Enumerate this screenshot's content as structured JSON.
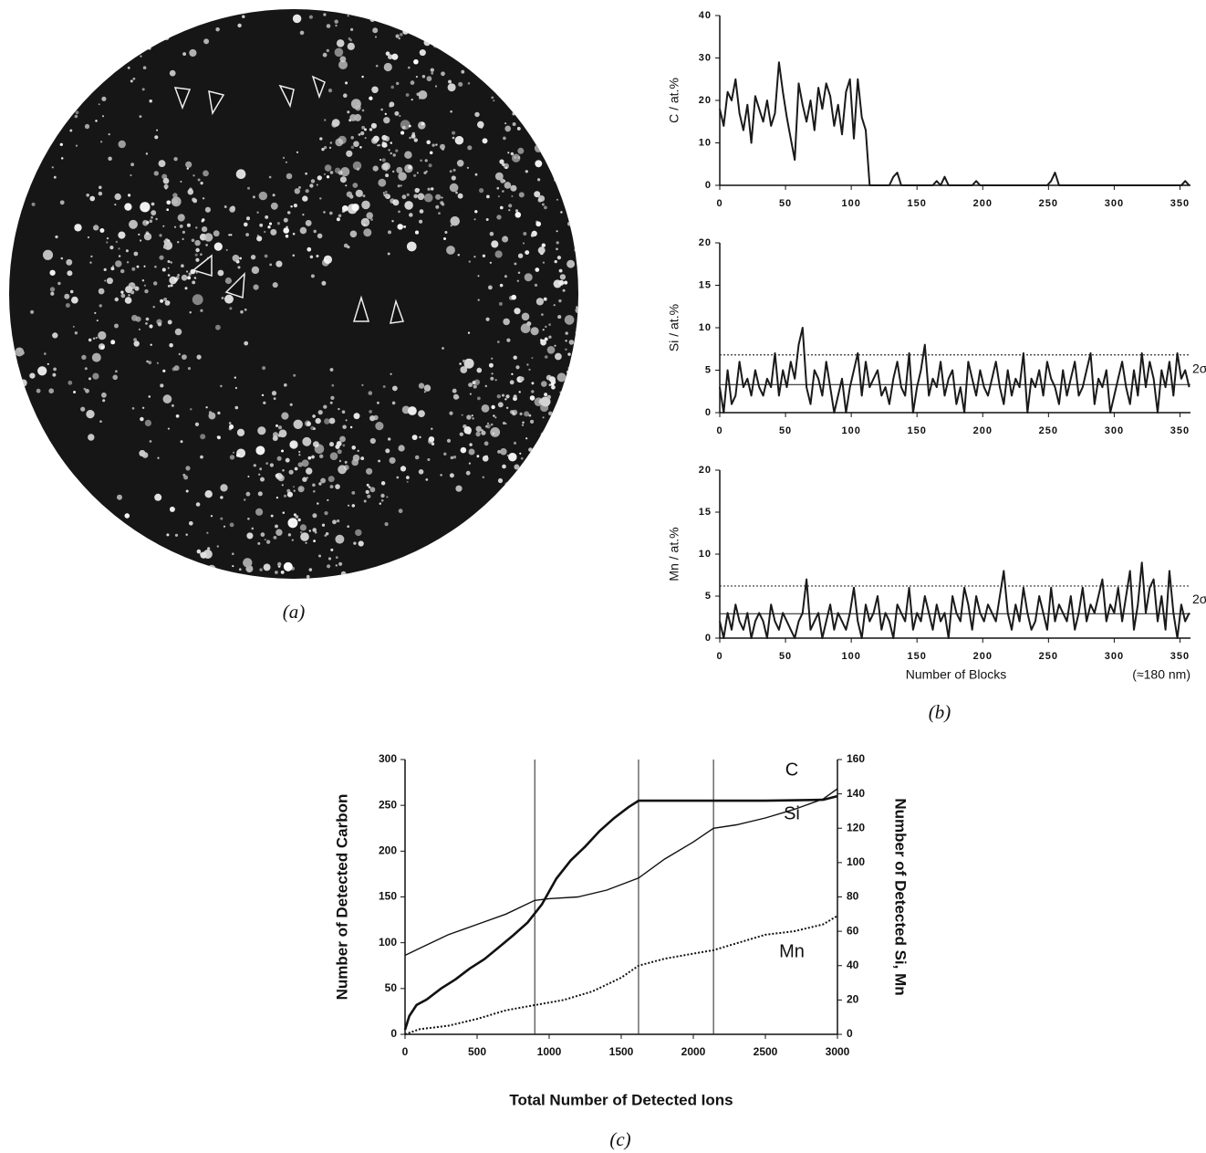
{
  "panels": [
    {
      "caption": "(a)"
    },
    {
      "caption": "(b)"
    },
    {
      "caption": "(c)"
    }
  ],
  "chart_data": [
    {
      "type": "line",
      "ylabel": "C / at.%",
      "xlim": [
        0,
        358
      ],
      "xticks": [
        0,
        50,
        100,
        150,
        200,
        250,
        300,
        350
      ],
      "ylim": [
        0,
        40
      ],
      "yticks": [
        0,
        10,
        20,
        30,
        40
      ],
      "color": "#1a1a1a",
      "x": [
        0,
        3,
        6,
        9,
        12,
        15,
        18,
        21,
        24,
        27,
        30,
        33,
        36,
        39,
        42,
        45,
        48,
        51,
        54,
        57,
        60,
        63,
        66,
        69,
        72,
        75,
        78,
        81,
        84,
        87,
        90,
        93,
        96,
        99,
        102,
        105,
        108,
        111,
        114,
        117,
        120,
        123,
        126,
        129,
        132,
        135,
        138,
        141,
        144,
        147,
        150,
        153,
        156,
        159,
        162,
        165,
        168,
        171,
        174,
        177,
        180,
        183,
        186,
        189,
        192,
        195,
        198,
        201,
        204,
        207,
        210,
        213,
        216,
        219,
        222,
        225,
        228,
        231,
        234,
        237,
        240,
        243,
        246,
        249,
        252,
        255,
        258,
        261,
        264,
        267,
        270,
        273,
        276,
        279,
        282,
        285,
        288,
        291,
        294,
        297,
        300,
        303,
        306,
        309,
        312,
        315,
        318,
        321,
        324,
        327,
        330,
        333,
        336,
        339,
        342,
        345,
        348,
        351,
        354,
        357
      ],
      "values": [
        18,
        14,
        22,
        20,
        25,
        17,
        13,
        19,
        10,
        21,
        18,
        15,
        20,
        14,
        17,
        29,
        22,
        16,
        11,
        6,
        24,
        19,
        15,
        20,
        13,
        23,
        18,
        24,
        21,
        14,
        19,
        12,
        22,
        25,
        11,
        25,
        16,
        13,
        0,
        0,
        0,
        0,
        0,
        0,
        2,
        3,
        0,
        0,
        0,
        0,
        0,
        0,
        0,
        0,
        0,
        1,
        0,
        2,
        0,
        0,
        0,
        0,
        0,
        0,
        0,
        1,
        0,
        0,
        0,
        0,
        0,
        0,
        0,
        0,
        0,
        0,
        0,
        0,
        0,
        0,
        0,
        0,
        0,
        0,
        1,
        3,
        0,
        0,
        0,
        0,
        0,
        0,
        0,
        0,
        0,
        0,
        0,
        0,
        0,
        0,
        0,
        0,
        0,
        0,
        0,
        0,
        0,
        0,
        0,
        0,
        0,
        0,
        0,
        0,
        0,
        0,
        0,
        0,
        1,
        0
      ]
    },
    {
      "type": "line",
      "ylabel": "Si / at.%",
      "xlim": [
        0,
        358
      ],
      "xticks": [
        0,
        50,
        100,
        150,
        200,
        250,
        300,
        350
      ],
      "ylim": [
        0,
        20
      ],
      "yticks": [
        0,
        5,
        10,
        15,
        20
      ],
      "color": "#1a1a1a",
      "reference_lines": [
        {
          "value": 6.8,
          "style": "dotted"
        },
        {
          "value": 3.3,
          "style": "solid"
        }
      ],
      "reference_label": "2σ",
      "x": [
        0,
        3,
        6,
        9,
        12,
        15,
        18,
        21,
        24,
        27,
        30,
        33,
        36,
        39,
        42,
        45,
        48,
        51,
        54,
        57,
        60,
        63,
        66,
        69,
        72,
        75,
        78,
        81,
        84,
        87,
        90,
        93,
        96,
        99,
        102,
        105,
        108,
        111,
        114,
        117,
        120,
        123,
        126,
        129,
        132,
        135,
        138,
        141,
        144,
        147,
        150,
        153,
        156,
        159,
        162,
        165,
        168,
        171,
        174,
        177,
        180,
        183,
        186,
        189,
        192,
        195,
        198,
        201,
        204,
        207,
        210,
        213,
        216,
        219,
        222,
        225,
        228,
        231,
        234,
        237,
        240,
        243,
        246,
        249,
        252,
        255,
        258,
        261,
        264,
        267,
        270,
        273,
        276,
        279,
        282,
        285,
        288,
        291,
        294,
        297,
        300,
        303,
        306,
        309,
        312,
        315,
        318,
        321,
        324,
        327,
        330,
        333,
        336,
        339,
        342,
        345,
        348,
        351,
        354,
        357
      ],
      "values": [
        3,
        0,
        5,
        1,
        2,
        6,
        3,
        4,
        2,
        5,
        3,
        2,
        4,
        3,
        7,
        2,
        5,
        3,
        6,
        4,
        8,
        10,
        3,
        1,
        5,
        4,
        2,
        6,
        3,
        0,
        2,
        4,
        0,
        3,
        5,
        7,
        2,
        6,
        3,
        4,
        5,
        2,
        3,
        1,
        4,
        6,
        3,
        2,
        7,
        0,
        3,
        5,
        8,
        2,
        4,
        3,
        6,
        2,
        4,
        5,
        1,
        3,
        0,
        6,
        4,
        2,
        5,
        3,
        2,
        4,
        6,
        3,
        1,
        5,
        2,
        4,
        3,
        7,
        0,
        4,
        3,
        5,
        2,
        6,
        4,
        3,
        1,
        5,
        2,
        4,
        6,
        2,
        3,
        5,
        7,
        1,
        4,
        3,
        5,
        0,
        2,
        4,
        6,
        3,
        1,
        5,
        2,
        7,
        3,
        6,
        4,
        0,
        5,
        3,
        6,
        2,
        7,
        4,
        5,
        3
      ]
    },
    {
      "type": "line",
      "ylabel": "Mn / at.%",
      "xlabel": "Number of Blocks",
      "x_note": "(≈180 nm)",
      "xlim": [
        0,
        358
      ],
      "xticks": [
        0,
        50,
        100,
        150,
        200,
        250,
        300,
        350
      ],
      "ylim": [
        0,
        20
      ],
      "yticks": [
        0,
        5,
        10,
        15,
        20
      ],
      "color": "#1a1a1a",
      "reference_lines": [
        {
          "value": 6.2,
          "style": "dotted"
        },
        {
          "value": 2.9,
          "style": "solid"
        }
      ],
      "reference_label": "2σ",
      "x": [
        0,
        3,
        6,
        9,
        12,
        15,
        18,
        21,
        24,
        27,
        30,
        33,
        36,
        39,
        42,
        45,
        48,
        51,
        54,
        57,
        60,
        63,
        66,
        69,
        72,
        75,
        78,
        81,
        84,
        87,
        90,
        93,
        96,
        99,
        102,
        105,
        108,
        111,
        114,
        117,
        120,
        123,
        126,
        129,
        132,
        135,
        138,
        141,
        144,
        147,
        150,
        153,
        156,
        159,
        162,
        165,
        168,
        171,
        174,
        177,
        180,
        183,
        186,
        189,
        192,
        195,
        198,
        201,
        204,
        207,
        210,
        213,
        216,
        219,
        222,
        225,
        228,
        231,
        234,
        237,
        240,
        243,
        246,
        249,
        252,
        255,
        258,
        261,
        264,
        267,
        270,
        273,
        276,
        279,
        282,
        285,
        288,
        291,
        294,
        297,
        300,
        303,
        306,
        309,
        312,
        315,
        318,
        321,
        324,
        327,
        330,
        333,
        336,
        339,
        342,
        345,
        348,
        351,
        354,
        357
      ],
      "values": [
        2,
        0,
        3,
        1,
        4,
        2,
        1,
        3,
        0,
        2,
        3,
        2,
        0,
        4,
        2,
        1,
        3,
        2,
        1,
        0,
        2,
        3,
        7,
        1,
        2,
        3,
        0,
        2,
        4,
        1,
        3,
        2,
        1,
        3,
        6,
        2,
        0,
        4,
        2,
        3,
        5,
        1,
        3,
        2,
        0,
        4,
        3,
        2,
        6,
        1,
        3,
        2,
        5,
        3,
        1,
        4,
        2,
        3,
        0,
        5,
        3,
        2,
        6,
        4,
        1,
        5,
        3,
        2,
        4,
        3,
        2,
        5,
        8,
        3,
        1,
        4,
        2,
        6,
        3,
        1,
        2,
        5,
        3,
        1,
        6,
        2,
        4,
        3,
        2,
        5,
        1,
        3,
        6,
        2,
        4,
        3,
        5,
        7,
        2,
        4,
        3,
        6,
        2,
        5,
        8,
        1,
        4,
        9,
        3,
        6,
        7,
        2,
        5,
        1,
        8,
        3,
        0,
        4,
        2,
        3
      ]
    },
    {
      "type": "line",
      "xlabel": "Total Number of Detected Ions",
      "ylabel": "Number of Detected Carbon",
      "y2label": "Number of Detected Si, Mn",
      "xlim": [
        0,
        3000
      ],
      "xticks": [
        0,
        500,
        1000,
        1500,
        2000,
        2500,
        3000
      ],
      "ylim": [
        0,
        300
      ],
      "yticks": [
        0,
        50,
        100,
        150,
        200,
        250,
        300
      ],
      "y2lim": [
        0,
        160
      ],
      "y2ticks": [
        0,
        20,
        40,
        60,
        80,
        100,
        120,
        140,
        160
      ],
      "vlines": [
        900,
        1620,
        2140
      ],
      "series": [
        {
          "name": "C",
          "color": "#111111",
          "style": "bold",
          "x": [
            0,
            30,
            80,
            150,
            250,
            350,
            450,
            550,
            650,
            750,
            850,
            950,
            1050,
            1150,
            1250,
            1350,
            1450,
            1550,
            1620,
            2000,
            2500,
            2900,
            3000
          ],
          "values": [
            5,
            20,
            32,
            38,
            50,
            60,
            72,
            82,
            95,
            108,
            122,
            142,
            170,
            190,
            205,
            222,
            236,
            248,
            255,
            255,
            255,
            256,
            260
          ]
        },
        {
          "name": "Si",
          "axis": "y2",
          "color": "#111111",
          "style": "solid",
          "x": [
            0,
            100,
            300,
            500,
            700,
            900,
            1000,
            1200,
            1400,
            1620,
            1800,
            2000,
            2140,
            2300,
            2500,
            2700,
            2900,
            3000
          ],
          "values": [
            46,
            50,
            58,
            64,
            70,
            78,
            79,
            80,
            84,
            91,
            102,
            112,
            120,
            122,
            126,
            131,
            137,
            143
          ]
        },
        {
          "name": "Mn",
          "axis": "y2",
          "color": "#111111",
          "style": "dotted",
          "x": [
            0,
            100,
            300,
            500,
            700,
            900,
            1100,
            1300,
            1500,
            1620,
            1800,
            2000,
            2140,
            2300,
            2500,
            2700,
            2900,
            3000
          ],
          "values": [
            0,
            3,
            5,
            9,
            14,
            17,
            20,
            25,
            33,
            40,
            44,
            47,
            49,
            53,
            58,
            60,
            64,
            69
          ]
        }
      ]
    }
  ]
}
